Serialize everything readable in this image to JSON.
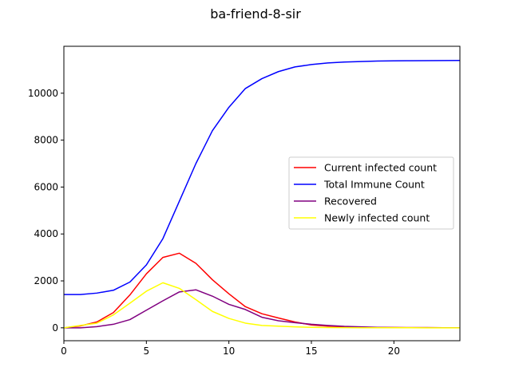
{
  "chart_data": {
    "type": "line",
    "title": "ba-friend-8-sir",
    "xlabel": "",
    "ylabel": "",
    "xlim": [
      0,
      24
    ],
    "ylim": [
      -550,
      12000
    ],
    "x_ticks": [
      0,
      5,
      10,
      15,
      20
    ],
    "y_ticks": [
      0,
      2000,
      4000,
      6000,
      8000,
      10000
    ],
    "grid": false,
    "legend_position": "center-right",
    "x": [
      0,
      1,
      2,
      3,
      4,
      5,
      6,
      7,
      8,
      9,
      10,
      11,
      12,
      13,
      14,
      15,
      16,
      17,
      18,
      19,
      20,
      21,
      22,
      23,
      24
    ],
    "series": [
      {
        "name": "Current infected count",
        "color": "#ff0000",
        "values": [
          0,
          80,
          250,
          650,
          1400,
          2300,
          3000,
          3180,
          2750,
          2050,
          1450,
          900,
          600,
          420,
          250,
          120,
          70,
          40,
          25,
          15,
          10,
          8,
          5,
          3,
          2
        ]
      },
      {
        "name": "Total Immune Count",
        "color": "#0000ff",
        "values": [
          1420,
          1420,
          1480,
          1600,
          1950,
          2680,
          3800,
          5400,
          7000,
          8400,
          9400,
          10200,
          10620,
          10920,
          11120,
          11220,
          11290,
          11330,
          11350,
          11370,
          11380,
          11385,
          11390,
          11392,
          11395
        ]
      },
      {
        "name": "Recovered",
        "color": "#800080",
        "values": [
          0,
          0,
          50,
          150,
          350,
          750,
          1150,
          1530,
          1620,
          1350,
          1000,
          780,
          450,
          300,
          220,
          150,
          100,
          60,
          40,
          20,
          10,
          8,
          5,
          3,
          2
        ]
      },
      {
        "name": "Newly infected count",
        "color": "#ffff00",
        "values": [
          0,
          100,
          200,
          550,
          1050,
          1560,
          1920,
          1680,
          1200,
          700,
          400,
          200,
          100,
          70,
          40,
          20,
          10,
          5,
          3,
          2,
          1,
          1,
          0,
          0,
          0
        ]
      }
    ]
  }
}
